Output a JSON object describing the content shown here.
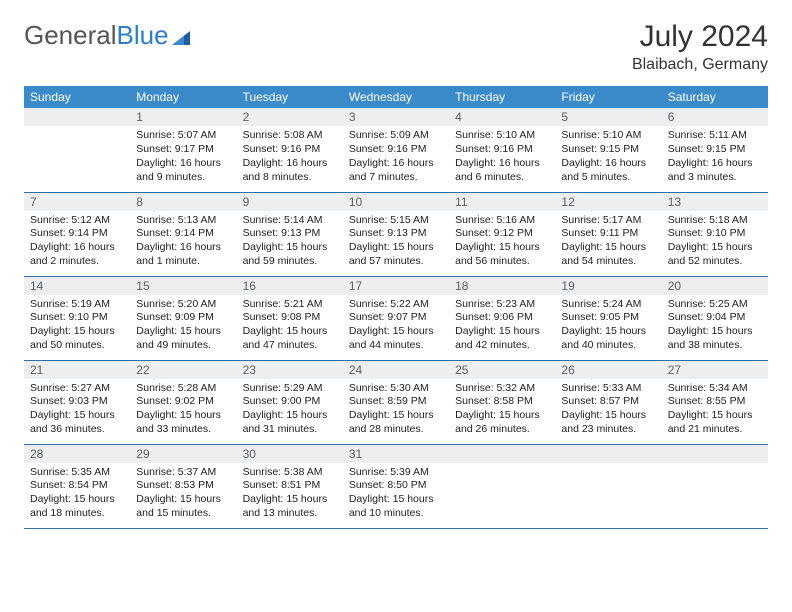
{
  "logo": {
    "part1": "General",
    "part2": "Blue"
  },
  "title": "July 2024",
  "location": "Blaibach, Germany",
  "header_color": "#3b8bca",
  "border_color": "#2f6fa8",
  "daynum_bg": "#eceef0",
  "weekdays": [
    "Sunday",
    "Monday",
    "Tuesday",
    "Wednesday",
    "Thursday",
    "Friday",
    "Saturday"
  ],
  "days": [
    {
      "n": "",
      "t": ""
    },
    {
      "n": "1",
      "t": "Sunrise: 5:07 AM\nSunset: 9:17 PM\nDaylight: 16 hours and 9 minutes."
    },
    {
      "n": "2",
      "t": "Sunrise: 5:08 AM\nSunset: 9:16 PM\nDaylight: 16 hours and 8 minutes."
    },
    {
      "n": "3",
      "t": "Sunrise: 5:09 AM\nSunset: 9:16 PM\nDaylight: 16 hours and 7 minutes."
    },
    {
      "n": "4",
      "t": "Sunrise: 5:10 AM\nSunset: 9:16 PM\nDaylight: 16 hours and 6 minutes."
    },
    {
      "n": "5",
      "t": "Sunrise: 5:10 AM\nSunset: 9:15 PM\nDaylight: 16 hours and 5 minutes."
    },
    {
      "n": "6",
      "t": "Sunrise: 5:11 AM\nSunset: 9:15 PM\nDaylight: 16 hours and 3 minutes."
    },
    {
      "n": "7",
      "t": "Sunrise: 5:12 AM\nSunset: 9:14 PM\nDaylight: 16 hours and 2 minutes."
    },
    {
      "n": "8",
      "t": "Sunrise: 5:13 AM\nSunset: 9:14 PM\nDaylight: 16 hours and 1 minute."
    },
    {
      "n": "9",
      "t": "Sunrise: 5:14 AM\nSunset: 9:13 PM\nDaylight: 15 hours and 59 minutes."
    },
    {
      "n": "10",
      "t": "Sunrise: 5:15 AM\nSunset: 9:13 PM\nDaylight: 15 hours and 57 minutes."
    },
    {
      "n": "11",
      "t": "Sunrise: 5:16 AM\nSunset: 9:12 PM\nDaylight: 15 hours and 56 minutes."
    },
    {
      "n": "12",
      "t": "Sunrise: 5:17 AM\nSunset: 9:11 PM\nDaylight: 15 hours and 54 minutes."
    },
    {
      "n": "13",
      "t": "Sunrise: 5:18 AM\nSunset: 9:10 PM\nDaylight: 15 hours and 52 minutes."
    },
    {
      "n": "14",
      "t": "Sunrise: 5:19 AM\nSunset: 9:10 PM\nDaylight: 15 hours and 50 minutes."
    },
    {
      "n": "15",
      "t": "Sunrise: 5:20 AM\nSunset: 9:09 PM\nDaylight: 15 hours and 49 minutes."
    },
    {
      "n": "16",
      "t": "Sunrise: 5:21 AM\nSunset: 9:08 PM\nDaylight: 15 hours and 47 minutes."
    },
    {
      "n": "17",
      "t": "Sunrise: 5:22 AM\nSunset: 9:07 PM\nDaylight: 15 hours and 44 minutes."
    },
    {
      "n": "18",
      "t": "Sunrise: 5:23 AM\nSunset: 9:06 PM\nDaylight: 15 hours and 42 minutes."
    },
    {
      "n": "19",
      "t": "Sunrise: 5:24 AM\nSunset: 9:05 PM\nDaylight: 15 hours and 40 minutes."
    },
    {
      "n": "20",
      "t": "Sunrise: 5:25 AM\nSunset: 9:04 PM\nDaylight: 15 hours and 38 minutes."
    },
    {
      "n": "21",
      "t": "Sunrise: 5:27 AM\nSunset: 9:03 PM\nDaylight: 15 hours and 36 minutes."
    },
    {
      "n": "22",
      "t": "Sunrise: 5:28 AM\nSunset: 9:02 PM\nDaylight: 15 hours and 33 minutes."
    },
    {
      "n": "23",
      "t": "Sunrise: 5:29 AM\nSunset: 9:00 PM\nDaylight: 15 hours and 31 minutes."
    },
    {
      "n": "24",
      "t": "Sunrise: 5:30 AM\nSunset: 8:59 PM\nDaylight: 15 hours and 28 minutes."
    },
    {
      "n": "25",
      "t": "Sunrise: 5:32 AM\nSunset: 8:58 PM\nDaylight: 15 hours and 26 minutes."
    },
    {
      "n": "26",
      "t": "Sunrise: 5:33 AM\nSunset: 8:57 PM\nDaylight: 15 hours and 23 minutes."
    },
    {
      "n": "27",
      "t": "Sunrise: 5:34 AM\nSunset: 8:55 PM\nDaylight: 15 hours and 21 minutes."
    },
    {
      "n": "28",
      "t": "Sunrise: 5:35 AM\nSunset: 8:54 PM\nDaylight: 15 hours and 18 minutes."
    },
    {
      "n": "29",
      "t": "Sunrise: 5:37 AM\nSunset: 8:53 PM\nDaylight: 15 hours and 15 minutes."
    },
    {
      "n": "30",
      "t": "Sunrise: 5:38 AM\nSunset: 8:51 PM\nDaylight: 15 hours and 13 minutes."
    },
    {
      "n": "31",
      "t": "Sunrise: 5:39 AM\nSunset: 8:50 PM\nDaylight: 15 hours and 10 minutes."
    },
    {
      "n": "",
      "t": ""
    },
    {
      "n": "",
      "t": ""
    },
    {
      "n": "",
      "t": ""
    }
  ]
}
